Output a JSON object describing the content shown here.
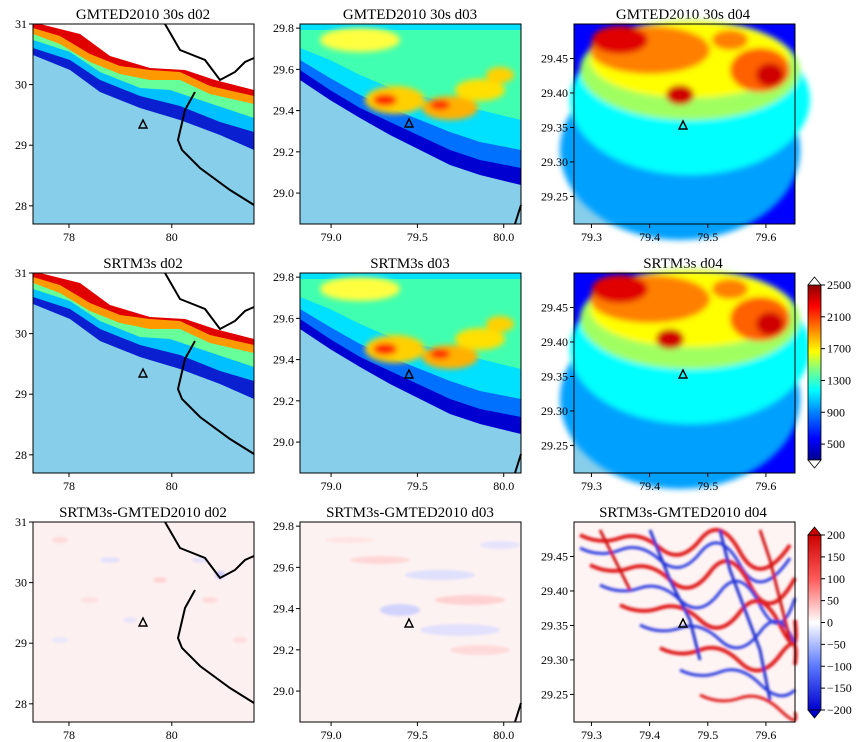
{
  "chart_data": [
    {
      "type": "heatmap",
      "title": "GMTED2010 30s d02",
      "xticks": [
        "78",
        "80"
      ],
      "yticks": [
        "31",
        "30",
        "29",
        "28"
      ],
      "ylim": [
        27.7,
        31.0
      ],
      "xlim": [
        77.3,
        81.6
      ],
      "marker": [
        79.45,
        29.37
      ]
    },
    {
      "type": "heatmap",
      "title": "GMTED2010 30s d03",
      "xticks": [
        "79.0",
        "79.5",
        "80.0"
      ],
      "yticks": [
        "29.8",
        "29.6",
        "29.4",
        "29.2",
        "29.0"
      ],
      "ylim": [
        28.85,
        29.82
      ],
      "xlim": [
        78.82,
        80.1
      ],
      "marker": [
        79.46,
        29.36
      ]
    },
    {
      "type": "heatmap",
      "title": "GMTED2010 30s d04",
      "xticks": [
        "79.3",
        "79.4",
        "79.5",
        "79.6"
      ],
      "yticks": [
        "29.45",
        "29.40",
        "29.35",
        "29.30",
        "29.25"
      ],
      "ylim": [
        29.21,
        29.5
      ],
      "xlim": [
        79.27,
        79.65
      ],
      "marker": [
        79.46,
        29.36
      ]
    },
    {
      "type": "heatmap",
      "title": "SRTM3s d02",
      "xticks": [
        "78",
        "80"
      ],
      "yticks": [
        "31",
        "30",
        "29",
        "28"
      ],
      "ylim": [
        27.7,
        31.0
      ],
      "xlim": [
        77.3,
        81.6
      ],
      "marker": [
        79.45,
        29.37
      ]
    },
    {
      "type": "heatmap",
      "title": "SRTM3s d03",
      "xticks": [
        "79.0",
        "79.5",
        "80.0"
      ],
      "yticks": [
        "29.8",
        "29.6",
        "29.4",
        "29.2",
        "29.0"
      ],
      "ylim": [
        28.85,
        29.82
      ],
      "xlim": [
        78.82,
        80.1
      ],
      "marker": [
        79.46,
        29.36
      ]
    },
    {
      "type": "heatmap",
      "title": "SRTM3s d04",
      "xticks": [
        "79.3",
        "79.4",
        "79.5",
        "79.6"
      ],
      "yticks": [
        "29.45",
        "29.40",
        "29.35",
        "29.30",
        "29.25"
      ],
      "ylim": [
        29.21,
        29.5
      ],
      "xlim": [
        79.27,
        79.65
      ],
      "marker": [
        79.46,
        29.36
      ]
    },
    {
      "type": "heatmap",
      "title": "SRTM3s-GMTED2010 d02",
      "xticks": [
        "78",
        "80"
      ],
      "yticks": [
        "31",
        "30",
        "29",
        "28"
      ],
      "ylim": [
        27.7,
        31.0
      ],
      "xlim": [
        77.3,
        81.6
      ],
      "marker": [
        79.45,
        29.37
      ]
    },
    {
      "type": "heatmap",
      "title": "SRTM3s-GMTED2010 d03",
      "xticks": [
        "79.0",
        "79.5",
        "80.0"
      ],
      "yticks": [
        "29.8",
        "29.6",
        "29.4",
        "29.2",
        "29.0"
      ],
      "ylim": [
        28.85,
        29.82
      ],
      "xlim": [
        78.82,
        80.1
      ],
      "marker": [
        79.46,
        29.36
      ]
    },
    {
      "type": "heatmap",
      "title": "SRTM3s-GMTED2010 d04",
      "xticks": [
        "79.3",
        "79.4",
        "79.5",
        "79.6"
      ],
      "yticks": [
        "29.45",
        "29.40",
        "29.35",
        "29.30",
        "29.25"
      ],
      "ylim": [
        29.21,
        29.5
      ],
      "xlim": [
        79.27,
        79.65
      ],
      "marker": [
        79.46,
        29.36
      ]
    }
  ],
  "colorbars": {
    "elevation": {
      "ticks": [
        "2500",
        "2100",
        "1700",
        "1300",
        "900",
        "500"
      ],
      "range": [
        300,
        2500
      ],
      "colors": [
        "#00008b",
        "#0000ff",
        "#0080ff",
        "#00ffff",
        "#80ff80",
        "#ffff00",
        "#ff8000",
        "#ff0000",
        "#8b0000"
      ]
    },
    "difference": {
      "ticks": [
        "200",
        "150",
        "100",
        "50",
        "0",
        "−50",
        "−100",
        "−150",
        "−200"
      ],
      "range": [
        -200,
        200
      ],
      "colors": [
        "#0000cc",
        "#4d6bff",
        "#ffffff",
        "#ff4d4d",
        "#cc0000"
      ]
    }
  },
  "colors": {
    "water": "#87ceeb",
    "border": "#000000"
  }
}
